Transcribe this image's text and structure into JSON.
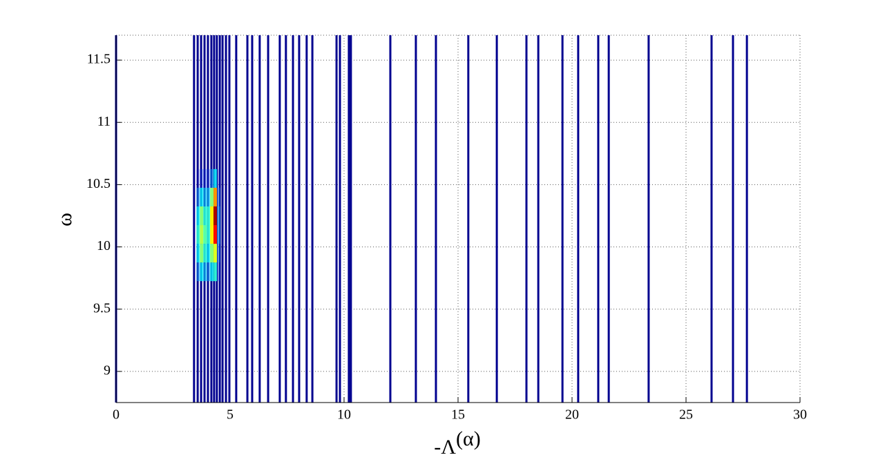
{
  "chart_data": {
    "type": "vlines",
    "xlabel": {
      "base": "-Λ",
      "sup": "(α)"
    },
    "ylabel": "ω",
    "x": [
      0,
      3.42,
      3.58,
      3.73,
      3.88,
      4.03,
      4.18,
      4.3,
      4.42,
      4.55,
      4.67,
      4.82,
      4.97,
      5.27,
      5.76,
      5.97,
      6.3,
      6.67,
      7.18,
      7.45,
      7.76,
      8.03,
      8.36,
      8.61,
      9.67,
      9.82,
      10.21,
      10.3,
      12.03,
      13.15,
      14.03,
      15.45,
      16.7,
      18.0,
      18.52,
      19.58,
      20.27,
      21.15,
      21.61,
      23.36,
      26.12,
      27.06,
      27.67
    ],
    "color": "#00008f",
    "heatmap": {
      "colormap": "jet",
      "x": [
        3.6,
        3.75,
        3.9,
        4.05,
        4.2,
        4.35,
        4.5
      ],
      "y": [
        9.8,
        9.95,
        10.1,
        10.25,
        10.4,
        10.55
      ],
      "cell": [
        0.15,
        0.15
      ],
      "values": [
        [
          0.2,
          0.3,
          0.25,
          0.2,
          0.3,
          0.35,
          0.1
        ],
        [
          0.3,
          0.45,
          0.35,
          0.3,
          0.45,
          0.55,
          0.15
        ],
        [
          0.35,
          0.5,
          0.4,
          0.35,
          0.6,
          0.85,
          0.2
        ],
        [
          0.3,
          0.45,
          0.35,
          0.35,
          0.6,
          0.95,
          0.2
        ],
        [
          0.2,
          0.3,
          0.25,
          0.25,
          0.45,
          0.7,
          0.15
        ],
        [
          0.05,
          0.1,
          0.1,
          0.1,
          0.2,
          0.3,
          0.05
        ]
      ]
    },
    "xlim": [
      0,
      30
    ],
    "xticks": [
      0,
      5,
      10,
      15,
      20,
      25,
      30
    ],
    "ylim": [
      8.75,
      11.7
    ],
    "yticks": [
      9,
      9.5,
      10,
      10.5,
      11,
      11.5
    ],
    "grid": true
  }
}
